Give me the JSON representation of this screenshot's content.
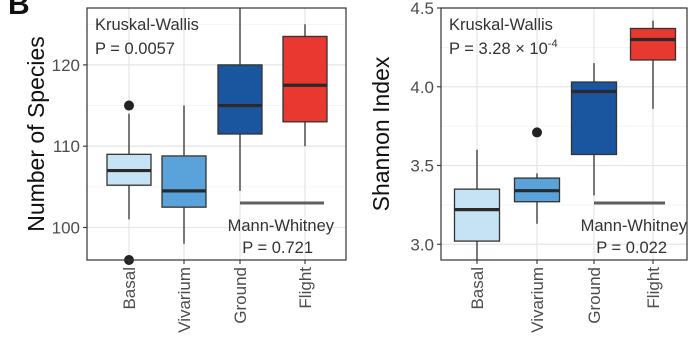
{
  "panel_label": "B",
  "chart_data": [
    {
      "type": "box",
      "ylabel": "Number of Species",
      "xlabel": "",
      "ylim": [
        96,
        127
      ],
      "yticks": [
        "100",
        "110",
        "120"
      ],
      "grid": true,
      "categories": [
        "Basal",
        "Vivarium",
        "Ground",
        "Flight"
      ],
      "boxes": [
        {
          "category": "Basal",
          "color": "#c6e2f5",
          "whisker_low": 101,
          "q1": 105.2,
          "median": 107,
          "q3": 109,
          "whisker_high": 114,
          "outliers": [
            115,
            96
          ]
        },
        {
          "category": "Vivarium",
          "color": "#5aa3da",
          "whisker_low": 98,
          "q1": 102.5,
          "median": 104.5,
          "q3": 108.8,
          "whisker_high": 115,
          "outliers": []
        },
        {
          "category": "Ground",
          "color": "#1a55a0",
          "whisker_low": 104.5,
          "q1": 111.5,
          "median": 115,
          "q3": 120,
          "whisker_high": 127,
          "outliers": []
        },
        {
          "category": "Flight",
          "color": "#e8382f",
          "whisker_low": 110,
          "q1": 113,
          "median": 117.5,
          "q3": 123.5,
          "whisker_high": 125,
          "outliers": []
        }
      ],
      "annotations": {
        "test1_name": "Kruskal-Wallis",
        "test1_p": "P = 0.0057",
        "test2_name": "Mann-Whitney",
        "test2_p": "P = 0.721"
      }
    },
    {
      "type": "box",
      "ylabel": "Shannon Index",
      "xlabel": "",
      "ylim": [
        2.9,
        4.5
      ],
      "yticks": [
        "3.0",
        "3.5",
        "4.0",
        "4.5"
      ],
      "grid": true,
      "categories": [
        "Basal",
        "Vivarium",
        "Ground",
        "Flight"
      ],
      "boxes": [
        {
          "category": "Basal",
          "color": "#c6e2f5",
          "whisker_low": 2.9,
          "q1": 3.02,
          "median": 3.22,
          "q3": 3.35,
          "whisker_high": 3.6,
          "outliers": []
        },
        {
          "category": "Vivarium",
          "color": "#5aa3da",
          "whisker_low": 3.13,
          "q1": 3.27,
          "median": 3.34,
          "q3": 3.42,
          "whisker_high": 3.45,
          "outliers": [
            3.71
          ]
        },
        {
          "category": "Ground",
          "color": "#1a55a0",
          "whisker_low": 3.31,
          "q1": 3.57,
          "median": 3.97,
          "q3": 4.03,
          "whisker_high": 4.15,
          "outliers": []
        },
        {
          "category": "Flight",
          "color": "#e8382f",
          "whisker_low": 3.86,
          "q1": 4.17,
          "median": 4.3,
          "q3": 4.37,
          "whisker_high": 4.42,
          "outliers": []
        }
      ],
      "annotations": {
        "test1_name": "Kruskal-Wallis",
        "test1_p_prefix": "P = 3.28 × 10",
        "test1_p_exp": "-4",
        "test2_name": "Mann-Whitney",
        "test2_p": "P = 0.022"
      }
    }
  ]
}
